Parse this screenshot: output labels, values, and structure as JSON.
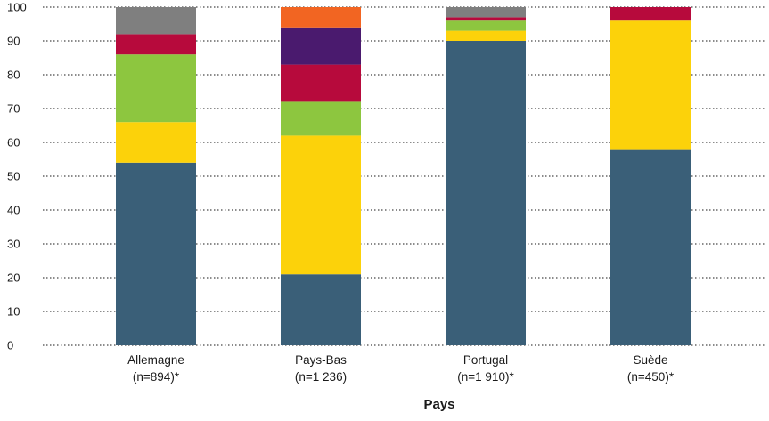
{
  "chart_data": {
    "type": "bar",
    "stacked": true,
    "xlabel": "Pays",
    "ylabel": "",
    "ylim": [
      0,
      100
    ],
    "yticks": [
      0,
      10,
      20,
      30,
      40,
      50,
      60,
      70,
      80,
      90,
      100
    ],
    "grid": true,
    "legend": "none",
    "categories": [
      {
        "name": "Allemagne",
        "sample": "(n=894)*"
      },
      {
        "name": "Pays-Bas",
        "sample": "(n=1 236)"
      },
      {
        "name": "Portugal",
        "sample": "(n=1 910)*"
      },
      {
        "name": "Suède",
        "sample": "(n=450)*"
      }
    ],
    "series": [
      {
        "color": "#3a5f78",
        "values": [
          54,
          21,
          90,
          58
        ]
      },
      {
        "color": "#fcd20a",
        "values": [
          12,
          41,
          3,
          38
        ]
      },
      {
        "color": "#8dc63f",
        "values": [
          20,
          10,
          3,
          0
        ]
      },
      {
        "color": "#b70a3c",
        "values": [
          6,
          11,
          1,
          4
        ]
      },
      {
        "color": "#4a1a6e",
        "values": [
          0,
          11,
          0,
          0
        ]
      },
      {
        "color": "#f26522",
        "values": [
          0,
          6,
          0,
          0
        ]
      },
      {
        "color": "#7f7f7f",
        "values": [
          8,
          0,
          3,
          0
        ]
      }
    ]
  }
}
